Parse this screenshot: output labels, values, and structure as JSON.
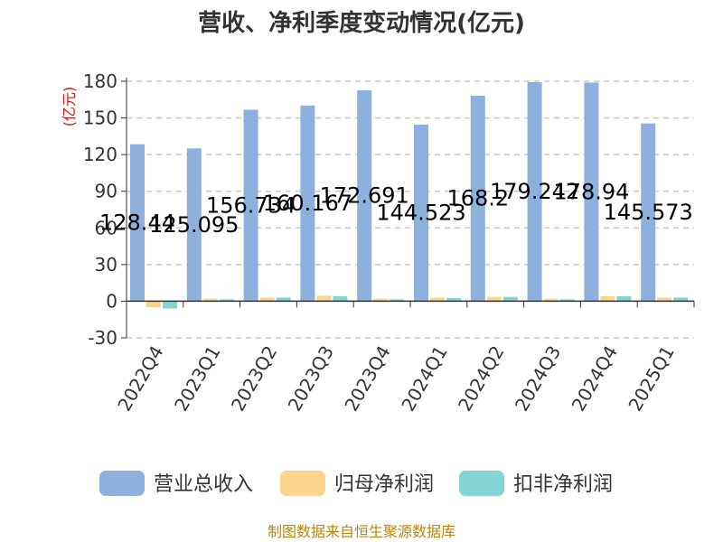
{
  "chart_data": {
    "type": "bar",
    "title": "营收、净利季度变动情况(亿元)",
    "ylabel": "(亿元)",
    "xlabel": "",
    "ylim": [
      -30,
      180
    ],
    "yticks": [
      -30,
      0,
      30,
      60,
      90,
      120,
      150,
      180
    ],
    "grid": true,
    "legend_position": "bottom",
    "categories": [
      "2022Q4",
      "2023Q1",
      "2023Q2",
      "2023Q3",
      "2023Q4",
      "2024Q1",
      "2024Q2",
      "2024Q3",
      "2024Q4",
      "2025Q1"
    ],
    "series": [
      {
        "name": "营业总收入",
        "color": "#8eb0dd",
        "values": [
          128.44,
          125.095,
          156.734,
          160.167,
          172.691,
          144.523,
          168.2,
          179.242,
          178.94,
          145.573
        ],
        "labels": [
          "128.44",
          "125.095",
          "156.734",
          "160.167",
          "172.691",
          "144.523",
          "168.2",
          "179.242",
          "178.94",
          "145.573"
        ]
      },
      {
        "name": "归母净利润",
        "color": "#fdd48b",
        "values": [
          -5,
          2,
          3,
          4.5,
          2,
          3,
          3.5,
          2,
          4,
          3
        ]
      },
      {
        "name": "扣非净利润",
        "color": "#84d4d4",
        "values": [
          -6,
          1.5,
          3,
          4,
          1.5,
          2.5,
          3.5,
          1.5,
          4,
          3
        ]
      }
    ]
  },
  "footer": {
    "source": "制图数据来自恒生聚源数据库"
  }
}
